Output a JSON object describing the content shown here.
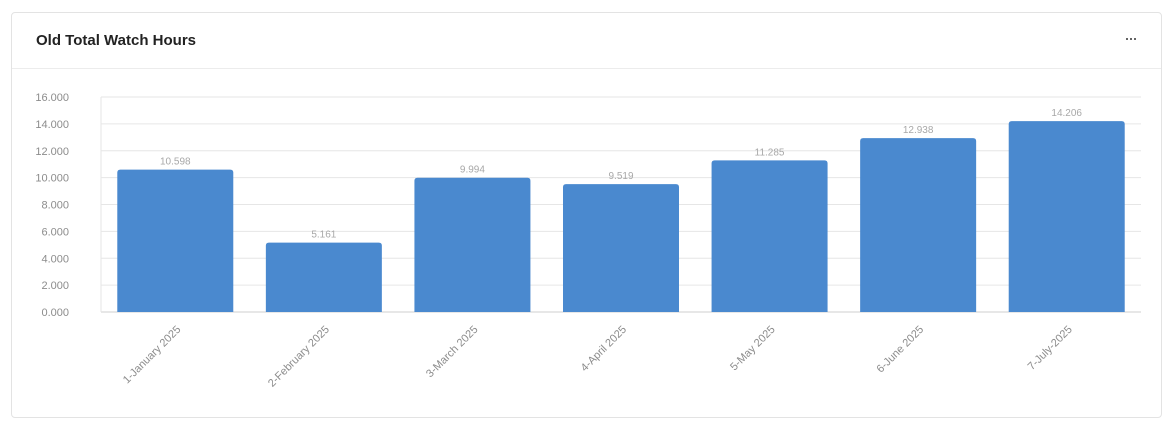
{
  "header": {
    "title": "Old Total Watch Hours",
    "menu_icon": "more-horizontal-icon"
  },
  "colors": {
    "bar": "#4a89cf",
    "grid": "#e6e6e6",
    "axis": "#cfcfcf"
  },
  "chart_data": {
    "type": "bar",
    "title": "Old Total Watch Hours",
    "xlabel": "",
    "ylabel": "",
    "categories": [
      "1-January 2025",
      "2-February 2025",
      "3-March 2025",
      "4-April 2025",
      "5-May 2025",
      "6-June 2025",
      "7-July-2025"
    ],
    "values": [
      10598,
      5161,
      9994,
      9519,
      11285,
      12938,
      14206
    ],
    "value_labels": [
      "10.598",
      "5.161",
      "9.994",
      "9.519",
      "11.285",
      "12.938",
      "14.206"
    ],
    "ylim": [
      0,
      16000
    ],
    "y_ticks": [
      0,
      2000,
      4000,
      6000,
      8000,
      10000,
      12000,
      14000,
      16000
    ],
    "y_tick_labels": [
      "0.000",
      "2.000",
      "4.000",
      "6.000",
      "8.000",
      "10.000",
      "12.000",
      "14.000",
      "16.000"
    ],
    "grid": true,
    "legend": "none"
  }
}
